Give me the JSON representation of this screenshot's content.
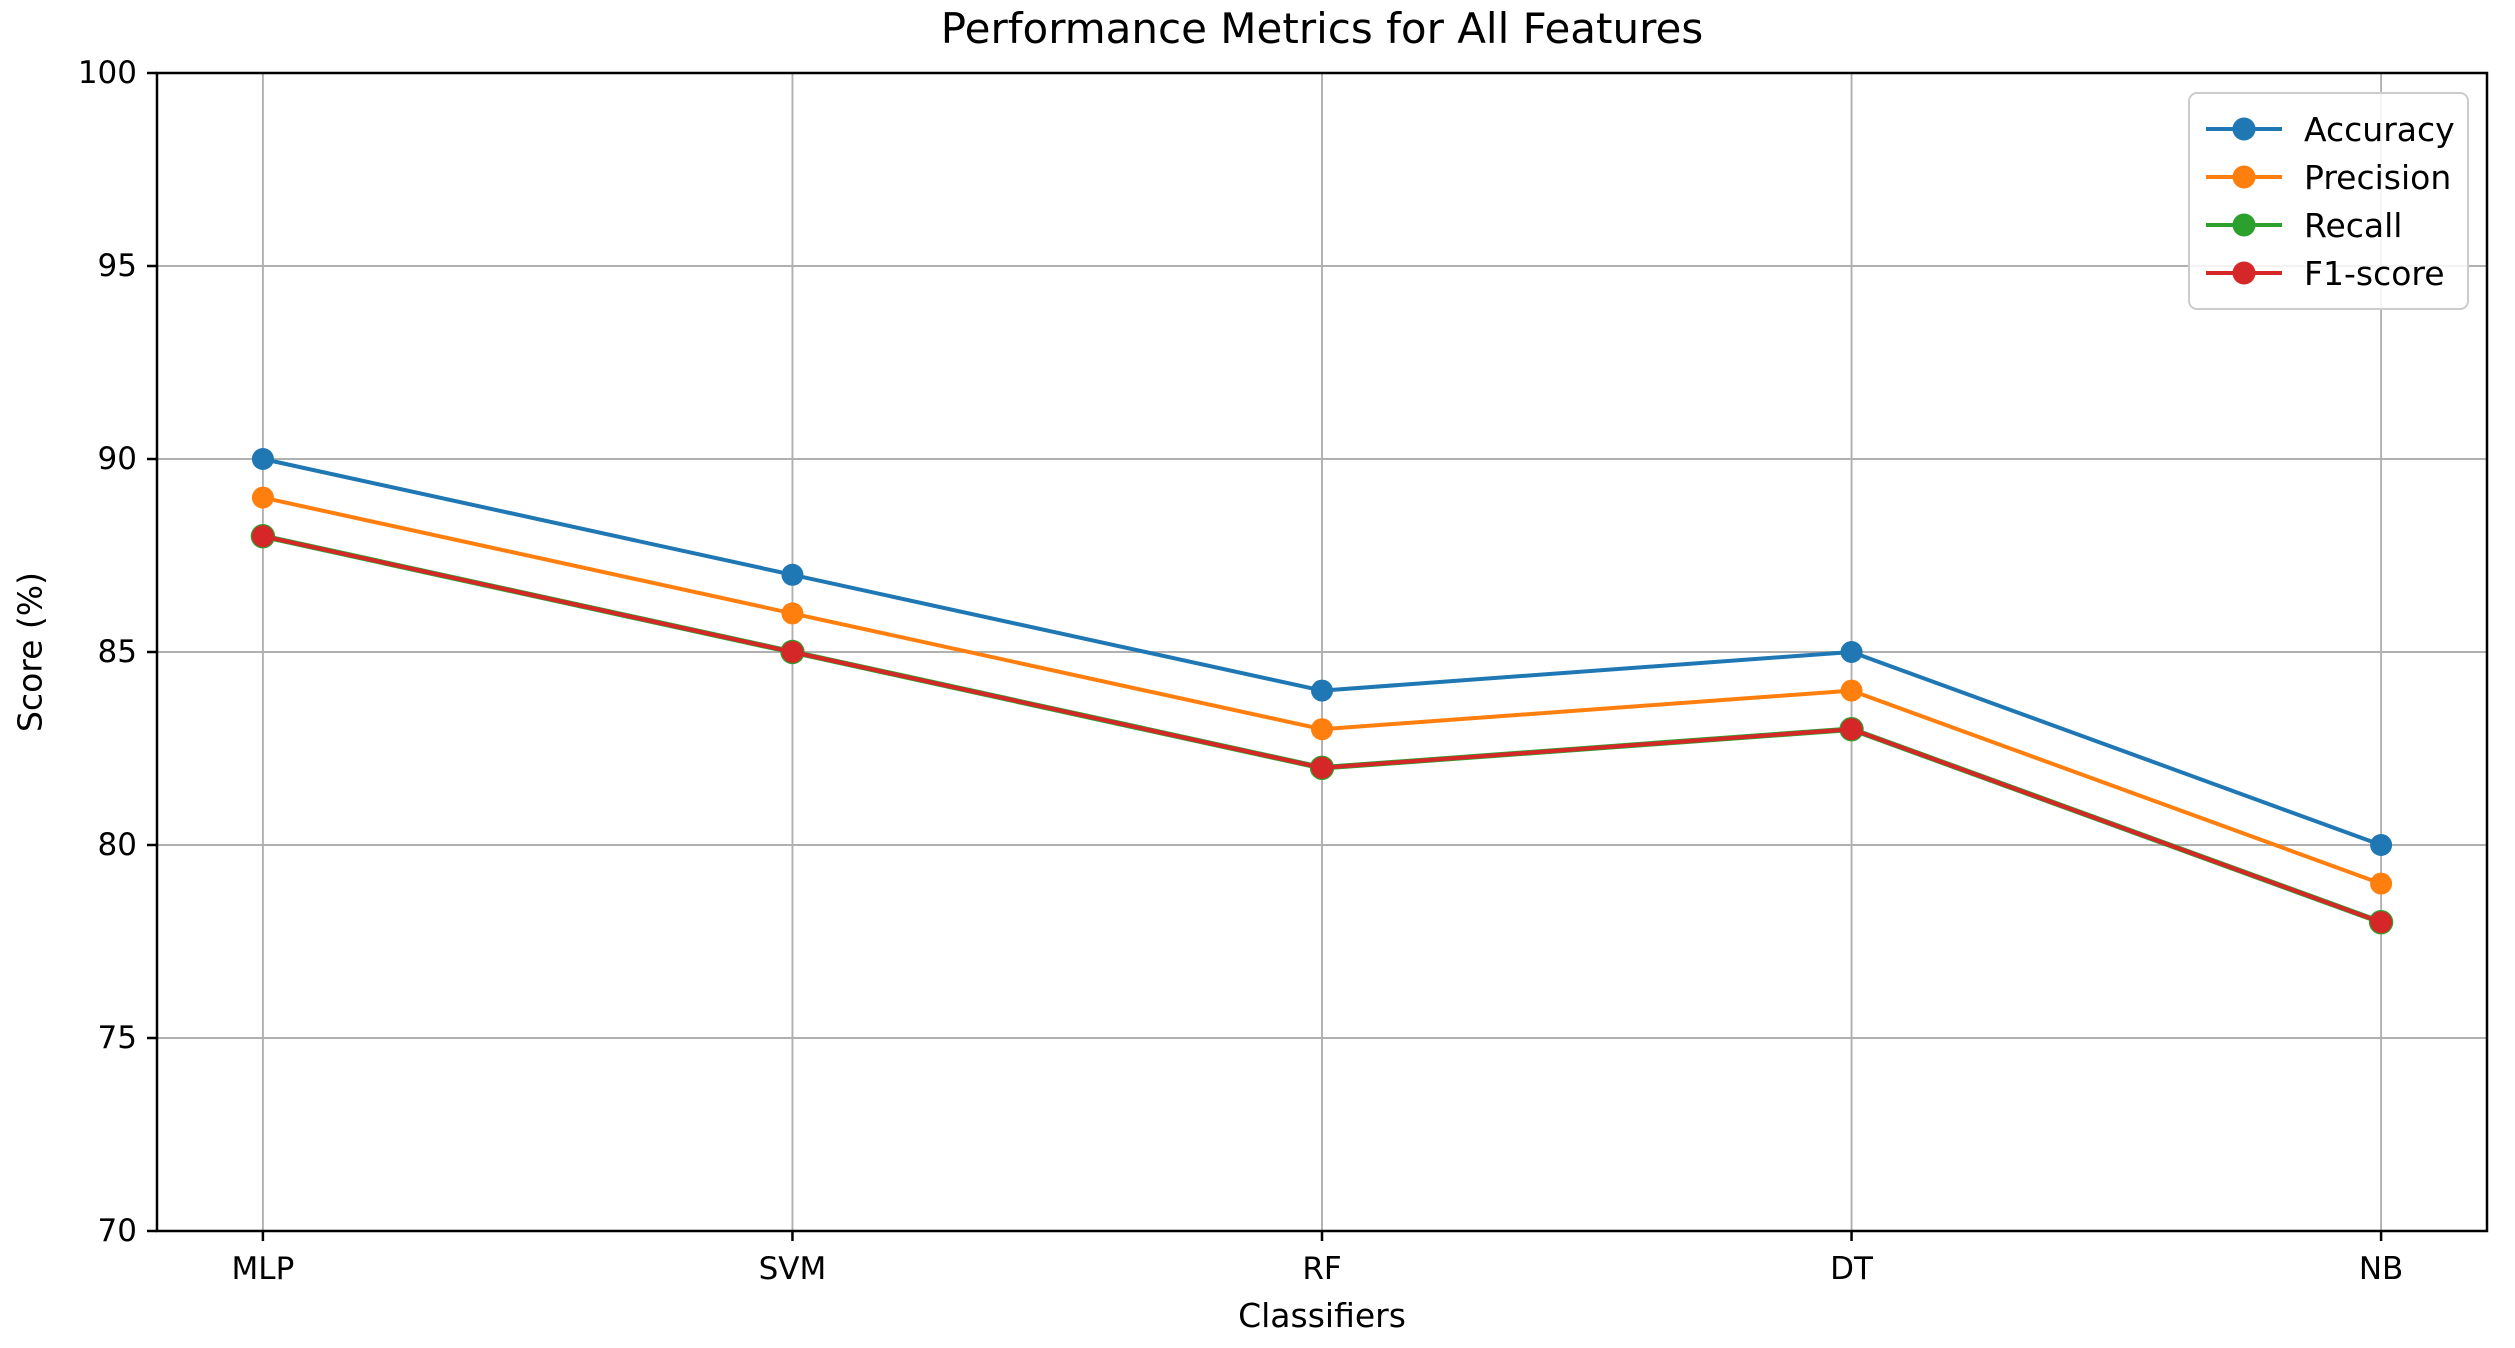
{
  "chart_data": {
    "type": "line",
    "title": "Performance Metrics for All Features",
    "xlabel": "Classifiers",
    "ylabel": "Score (%)",
    "categories": [
      "MLP",
      "SVM",
      "RF",
      "DT",
      "NB"
    ],
    "series": [
      {
        "name": "Accuracy",
        "color": "#1f77b4",
        "values": [
          90,
          87,
          84,
          85,
          80
        ]
      },
      {
        "name": "Precision",
        "color": "#ff7f0e",
        "values": [
          89,
          86,
          83,
          84,
          79
        ]
      },
      {
        "name": "Recall",
        "color": "#2ca02c",
        "values": [
          88,
          85,
          82,
          83,
          78
        ],
        "note": "line hidden beneath F1-score line"
      },
      {
        "name": "F1-score",
        "color": "#d62728",
        "values": [
          88,
          85,
          82,
          83,
          78
        ]
      }
    ],
    "ylim": [
      70,
      100
    ],
    "yticks": [
      70,
      75,
      80,
      85,
      90,
      95,
      100
    ],
    "grid": true,
    "legend_position": "upper right",
    "colors": {
      "grid": "#b0b0b0",
      "spine": "#000000",
      "tick_label": "#000000",
      "background": "#ffffff"
    }
  }
}
